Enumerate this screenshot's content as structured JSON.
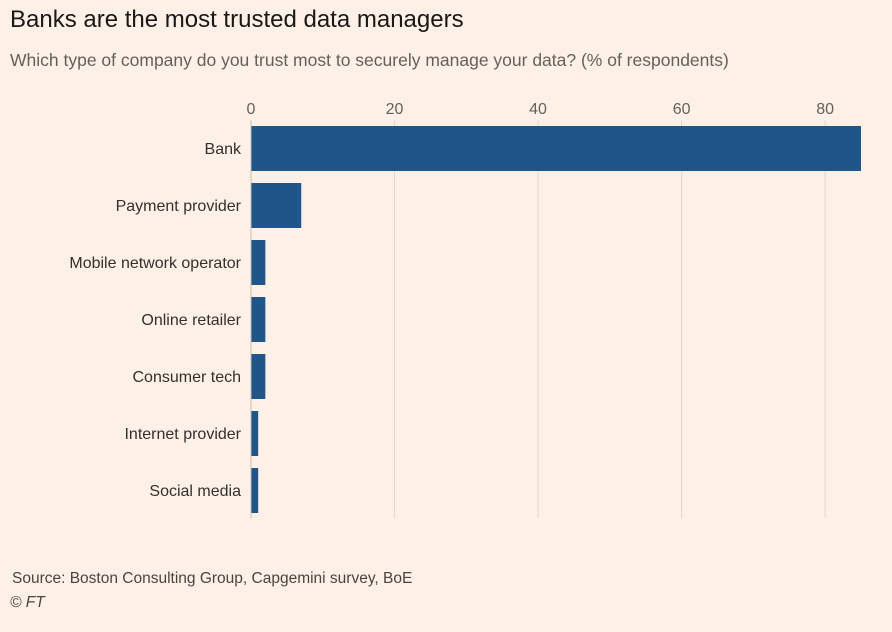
{
  "header": {
    "title": "Banks are the most trusted data managers",
    "subtitle": "Which type of company do you trust most to securely manage your data? (% of respondents)"
  },
  "footer": {
    "source": "Source: Boston Consulting Group, Capgemini survey, BoE",
    "copyright": "© FT"
  },
  "colors": {
    "bar": "#1f5689",
    "grid": "#e3d6cc",
    "background": "#fdf0e6",
    "tick_text": "#66605c",
    "label_text": "#33302e"
  },
  "chart_data": {
    "type": "bar",
    "orientation": "horizontal",
    "title": "Banks are the most trusted data managers",
    "subtitle": "Which type of company do you trust most to securely manage your data? (% of respondents)",
    "categories": [
      "Bank",
      "Payment provider",
      "Mobile network operator",
      "Online retailer",
      "Consumer tech",
      "Internet provider",
      "Social media"
    ],
    "values": [
      85,
      7,
      2,
      2,
      2,
      1,
      1
    ],
    "xlim": [
      0,
      85
    ],
    "xticks": [
      0,
      20,
      40,
      60,
      80
    ],
    "xaxis_position": "top",
    "grid": true,
    "legend": "none"
  }
}
